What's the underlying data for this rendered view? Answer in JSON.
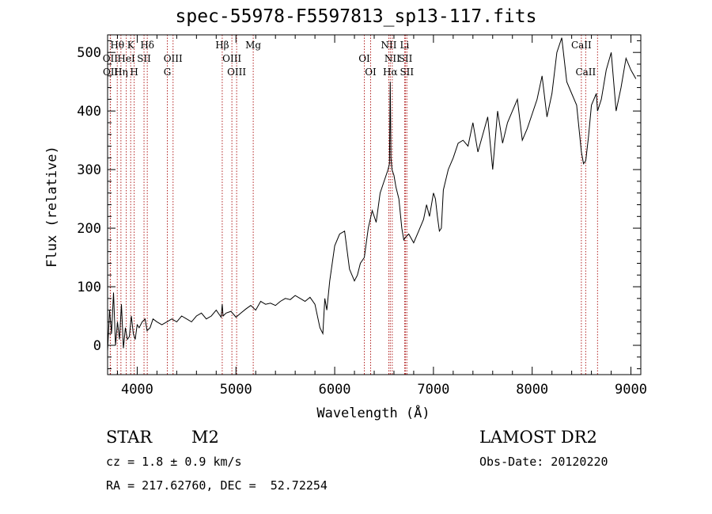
{
  "title": "spec-55978-F5597813_sp13-117.fits",
  "chart_data": {
    "type": "line",
    "xlabel": "Wavelength (Å)",
    "ylabel": "Flux (relative)",
    "xlim": [
      3700,
      9100
    ],
    "ylim": [
      -50,
      530
    ],
    "xticks": [
      4000,
      5000,
      6000,
      7000,
      8000,
      9000
    ],
    "yticks": [
      0,
      100,
      200,
      300,
      400,
      500
    ],
    "grid": false,
    "series": [
      {
        "x": [
          3700,
          3720,
          3740,
          3760,
          3780,
          3800,
          3820,
          3840,
          3860,
          3880,
          3900,
          3920,
          3940,
          3960,
          3980,
          4000,
          4020,
          4050,
          4080,
          4100,
          4130,
          4160,
          4200,
          4250,
          4300,
          4350,
          4400,
          4450,
          4500,
          4550,
          4600,
          4650,
          4700,
          4750,
          4800,
          4850,
          4861,
          4870,
          4900,
          4950,
          5000,
          5050,
          5100,
          5150,
          5200,
          5250,
          5300,
          5350,
          5400,
          5450,
          5500,
          5550,
          5600,
          5650,
          5700,
          5750,
          5800,
          5850,
          5880,
          5900,
          5920,
          5950,
          6000,
          6050,
          6100,
          6150,
          6200,
          6230,
          6260,
          6300,
          6340,
          6380,
          6420,
          6460,
          6500,
          6540,
          6555,
          6563,
          6570,
          6580,
          6600,
          6620,
          6650,
          6680,
          6700,
          6720,
          6750,
          6800,
          6850,
          6900,
          6930,
          6960,
          7000,
          7020,
          7040,
          7060,
          7080,
          7100,
          7150,
          7200,
          7250,
          7300,
          7350,
          7400,
          7450,
          7500,
          7550,
          7600,
          7650,
          7700,
          7750,
          7800,
          7850,
          7900,
          7950,
          8000,
          8050,
          8100,
          8150,
          8200,
          8250,
          8300,
          8350,
          8400,
          8450,
          8498,
          8520,
          8542,
          8570,
          8600,
          8650,
          8662,
          8700,
          8750,
          8800,
          8850,
          8900,
          8950,
          9000,
          9050
        ],
        "y": [
          -10,
          60,
          20,
          90,
          0,
          40,
          10,
          70,
          -5,
          30,
          10,
          15,
          50,
          20,
          10,
          35,
          30,
          40,
          45,
          25,
          30,
          45,
          40,
          35,
          40,
          45,
          40,
          50,
          45,
          40,
          50,
          55,
          45,
          50,
          60,
          48,
          70,
          50,
          55,
          58,
          48,
          55,
          62,
          68,
          60,
          75,
          70,
          72,
          68,
          75,
          80,
          78,
          85,
          80,
          75,
          82,
          70,
          30,
          20,
          80,
          60,
          110,
          170,
          190,
          195,
          130,
          110,
          120,
          140,
          150,
          200,
          230,
          210,
          260,
          280,
          300,
          310,
          450,
          320,
          300,
          290,
          270,
          250,
          200,
          180,
          185,
          190,
          175,
          195,
          215,
          240,
          220,
          260,
          250,
          220,
          195,
          200,
          265,
          300,
          320,
          345,
          350,
          340,
          380,
          330,
          360,
          390,
          300,
          400,
          345,
          380,
          400,
          420,
          350,
          370,
          395,
          420,
          460,
          390,
          430,
          500,
          525,
          450,
          430,
          410,
          330,
          310,
          315,
          355,
          410,
          430,
          400,
          420,
          470,
          500,
          400,
          440,
          490,
          470,
          455
        ]
      }
    ],
    "line_labels": [
      {
        "text": "Hθ",
        "row": 0,
        "x": 3798
      },
      {
        "text": "K",
        "row": 0,
        "x": 3934
      },
      {
        "text": "Hδ",
        "row": 0,
        "x": 4102
      },
      {
        "text": "Hβ",
        "row": 0,
        "x": 4861
      },
      {
        "text": "Mg",
        "row": 0,
        "x": 5175
      },
      {
        "text": "NII",
        "row": 0,
        "x": 6548
      },
      {
        "text": "Li",
        "row": 0,
        "x": 6708
      },
      {
        "text": "CaII",
        "row": 0,
        "x": 8498
      },
      {
        "text": "OII",
        "row": 1,
        "x": 3727
      },
      {
        "text": "HeI",
        "row": 1,
        "x": 3889
      },
      {
        "text": "SII",
        "row": 1,
        "x": 4069
      },
      {
        "text": "OIII",
        "row": 1,
        "x": 4363
      },
      {
        "text": "OIII",
        "row": 1,
        "x": 4959
      },
      {
        "text": "OI",
        "row": 1,
        "x": 6300
      },
      {
        "text": "NII",
        "row": 1,
        "x": 6583
      },
      {
        "text": "SII",
        "row": 1,
        "x": 6717
      },
      {
        "text": "OII",
        "row": 2,
        "x": 3729
      },
      {
        "text": "Hη",
        "row": 2,
        "x": 3835
      },
      {
        "text": "H",
        "row": 2,
        "x": 3969
      },
      {
        "text": "G",
        "row": 2,
        "x": 4305
      },
      {
        "text": "OIII",
        "row": 2,
        "x": 5007
      },
      {
        "text": "OI",
        "row": 2,
        "x": 6364
      },
      {
        "text": "Hα",
        "row": 2,
        "x": 6563
      },
      {
        "text": "SII",
        "row": 2,
        "x": 6731
      },
      {
        "text": "CaII",
        "row": 2,
        "x": 8542
      }
    ],
    "line_markers": [
      3727,
      3729,
      3798,
      3835,
      3889,
      3934,
      3969,
      4069,
      4102,
      4305,
      4363,
      4861,
      4959,
      5007,
      5175,
      6300,
      6364,
      6548,
      6563,
      6583,
      6708,
      6717,
      6731,
      8498,
      8542,
      8662
    ]
  },
  "footer": {
    "object_class": "STAR",
    "subclass": "M2",
    "survey": "LAMOST DR2",
    "cz": "cz = 1.8 ± 0.9 km/s",
    "obs_date": "Obs-Date: 20120220",
    "coords": "RA = 217.62760, DEC =  52.72254"
  },
  "colors": {
    "spectrum": "#000000",
    "line_marker": "#b22222"
  }
}
